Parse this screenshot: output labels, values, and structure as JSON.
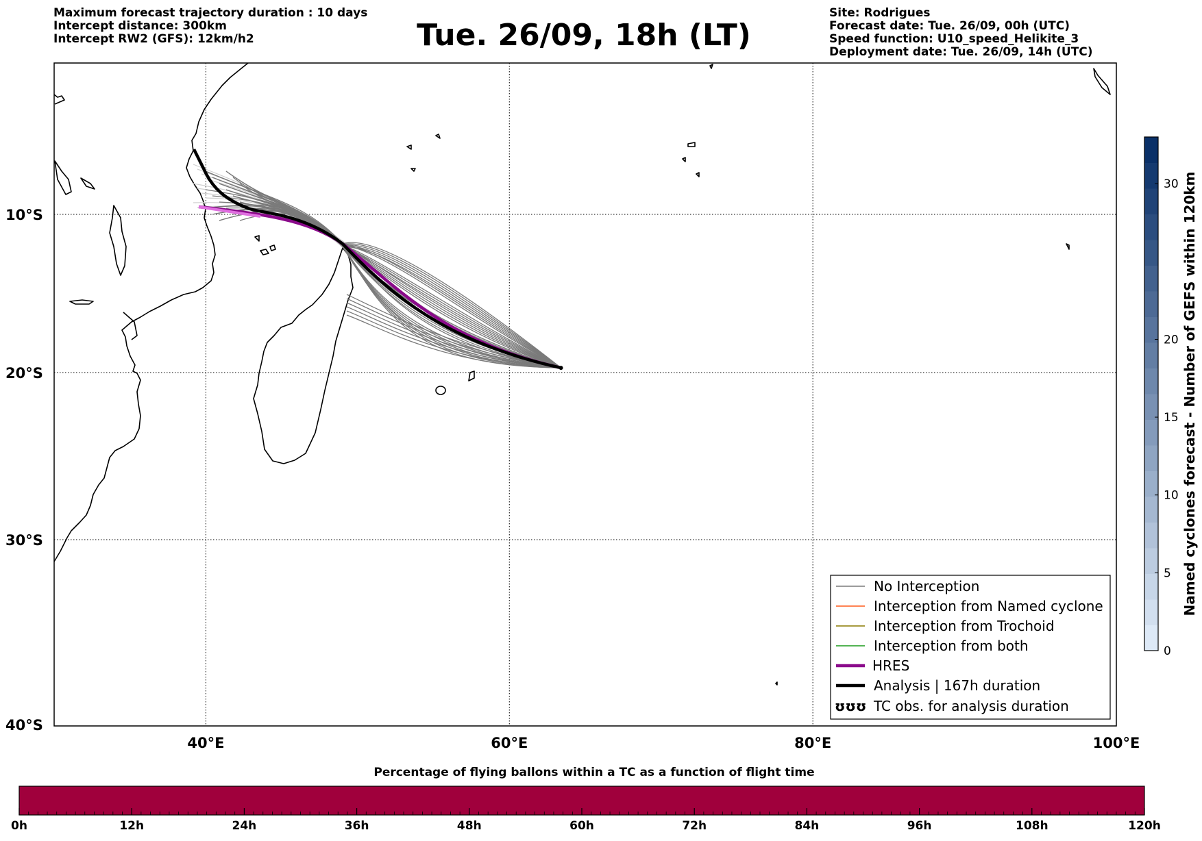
{
  "header": {
    "left_lines": [
      "Maximum forecast trajectory duration : 10 days",
      "Intercept distance: 300km",
      "Intercept RW2 (GFS):  12km/h2"
    ],
    "title": "Tue. 26/09, 18h (LT)",
    "right_lines": [
      "Site: Rodrigues",
      "Forecast date: Tue. 26/09, 00h (UTC)",
      "Speed function: U10_speed_Helikite_3",
      "Deployment date: Tue. 26/09, 14h (UTC)"
    ]
  },
  "map": {
    "lon_ticks": [
      {
        "value": 40,
        "label": "40°E"
      },
      {
        "value": 60,
        "label": "60°E"
      },
      {
        "value": 80,
        "label": "80°E"
      },
      {
        "value": 100,
        "label": "100°E"
      }
    ],
    "lat_ticks": [
      {
        "value": -10,
        "label": "10°S"
      },
      {
        "value": -20,
        "label": "20°S"
      },
      {
        "value": -30,
        "label": "30°S"
      },
      {
        "value": -40,
        "label": "40°S"
      }
    ],
    "extent": {
      "lon": [
        30,
        100
      ],
      "lat": [
        -40,
        -0.3
      ]
    },
    "launch_site": {
      "lon": 63.4,
      "lat": -19.7
    },
    "colors": {
      "no_interception": "#7a7a7a",
      "light_members": "#cfcfcf",
      "named_cyclone": "#ff5a1a",
      "trochoid": "#8a7a00",
      "both": "#1a9a1a",
      "hres": "#8b0a8b",
      "hres_tail": "#e070e0",
      "analysis": "#000000"
    }
  },
  "legend": {
    "items": [
      {
        "label": "No Interception",
        "color": "#7a7a7a",
        "kind": "thin"
      },
      {
        "label": "Interception from Named cyclone",
        "color": "#ff5a1a",
        "kind": "thin"
      },
      {
        "label": "Interception from Trochoid",
        "color": "#8a7a00",
        "kind": "thin"
      },
      {
        "label": "Interception from both",
        "color": "#1a9a1a",
        "kind": "thin"
      },
      {
        "label": "HRES",
        "color": "#8b0a8b",
        "kind": "thick"
      },
      {
        "label": "Analysis | 167h duration",
        "color": "#000000",
        "kind": "thick"
      },
      {
        "label": "TC obs. for analysis duration",
        "color": "#000000",
        "kind": "symbol"
      }
    ],
    "symbol_glyph": "ʊʊʊ"
  },
  "colorbar_right": {
    "label": "Named cyclones forecast - Number of GEFS within 120km",
    "range": [
      0,
      33
    ],
    "ticks": [
      0,
      5,
      10,
      15,
      20,
      30
    ],
    "steps": 20,
    "color_low": "#dde9f7",
    "color_high": "#0a3068"
  },
  "colorbar_bottom": {
    "title": "Percentage of flying ballons within a TC as a function of flight time",
    "ticks": [
      "0h",
      "12h",
      "24h",
      "36h",
      "48h",
      "60h",
      "72h",
      "84h",
      "96h",
      "108h",
      "120h"
    ],
    "fill_color": "#a0003c"
  }
}
